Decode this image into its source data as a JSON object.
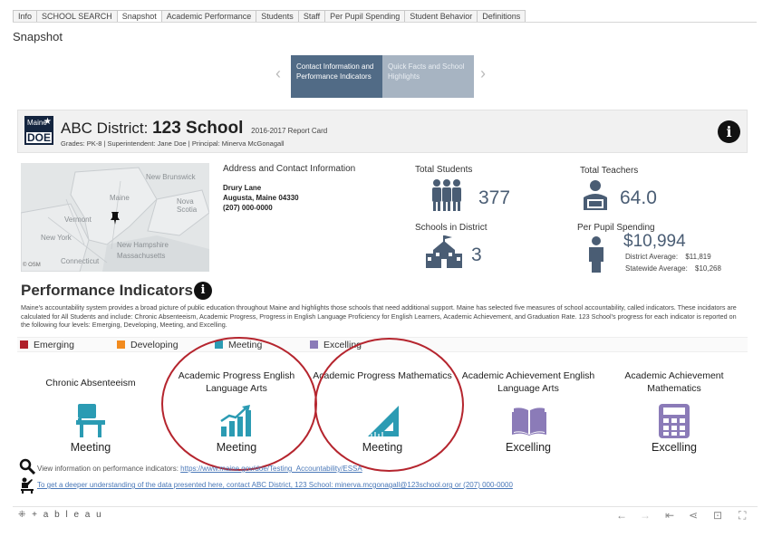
{
  "tabs": [
    {
      "label": "Info",
      "active": false
    },
    {
      "label": "SCHOOL SEARCH",
      "active": false
    },
    {
      "label": "Snapshot",
      "active": true
    },
    {
      "label": "Academic Performance",
      "active": false
    },
    {
      "label": "Students",
      "active": false
    },
    {
      "label": "Staff",
      "active": false
    },
    {
      "label": "Per Pupil Spending",
      "active": false
    },
    {
      "label": "Student Behavior",
      "active": false
    },
    {
      "label": "Definitions",
      "active": false
    }
  ],
  "page_title": "Snapshot",
  "carousel": {
    "active_label": "Contact Information and Performance Indicators",
    "inactive_label": "Quick Facts and School Highlights",
    "prev_icon": "chevron-left-icon",
    "next_icon": "chevron-right-icon"
  },
  "header": {
    "logo_text_top": "Maine",
    "logo_text_bottom": "DOE",
    "district": "ABC District:",
    "school": "123 School",
    "report_card": "2016-2017 Report Card",
    "subheading": "Grades: PK-8 | Superintendent: Jane Doe | Principal: Minerva McGonagall"
  },
  "map": {
    "labels": [
      "New Brunswick",
      "Maine",
      "Nova Scotia",
      "Vermont",
      "New York",
      "New Hampshire",
      "Massachusetts",
      "Connecticut"
    ],
    "attribution": "© OSM"
  },
  "address": {
    "title": "Address and Contact Information",
    "street": "Drury Lane",
    "city": "Augusta, Maine 04330",
    "phone": "(207) 000-0000"
  },
  "stats": {
    "total_students_label": "Total Students",
    "total_students": "377",
    "total_teachers_label": "Total Teachers",
    "total_teachers": "64.0",
    "schools_label": "Schools in District",
    "schools": "3",
    "spending_label": "Per Pupil Spending",
    "spending": "$10,994",
    "district_avg_label": "District Average:",
    "district_avg": "$11,819",
    "statewide_avg_label": "Statewide Average:",
    "statewide_avg": "$10,268"
  },
  "performance": {
    "title": "Performance Indicators",
    "description": "Maine's accountability system provides a broad picture of public education throughout Maine and highlights those schools that need additional support. Maine has selected five measures of school accountability, called indicators. These incidators are calculated for All Students and include: Chronic Absenteeism, Academic Progress, Progress in English Language Proficiency for English Learners, Academic Achievement, and Graduation Rate. 123 School's progress for each indicator is reported on the following four levels: Emerging, Developing, Meeting, and Excelling.",
    "legend": [
      {
        "label": "Emerging",
        "color": "#b0202a"
      },
      {
        "label": "Developing",
        "color": "#f28b1e"
      },
      {
        "label": "Meeting",
        "color": "#2b9bb3"
      },
      {
        "label": "Excelling",
        "color": "#8b7bb8"
      }
    ],
    "indicators": [
      {
        "title": "Chronic Absenteeism",
        "status": "Meeting",
        "icon": "school-desk-icon"
      },
      {
        "title": "Academic Progress English Language Arts",
        "status": "Meeting",
        "icon": "bar-chart-growth-icon"
      },
      {
        "title": "Academic Progress Mathematics",
        "status": "Meeting",
        "icon": "ruler-triangle-icon"
      },
      {
        "title": "Academic Achievement English Language Arts",
        "status": "Excelling",
        "icon": "open-book-icon"
      },
      {
        "title": "Academic Achievement Mathematics",
        "status": "Excelling",
        "icon": "calculator-icon"
      }
    ]
  },
  "footer": {
    "view_info_text": "View information on performance indicators:",
    "view_info_link": "https://www.maine.gov/doe/Testing_Accountability/ESSA",
    "contact_link": "To get a deeper understanding of the data presented here, contact ABC District, 123 School: minerva.mcgonagall@123school.org or (207) 000-0000"
  },
  "toolbar": {
    "brand": "+ a b l e a u"
  },
  "colors": {
    "nav_active": "#516b86",
    "nav_inactive": "#a7b4c2",
    "stat_blue": "#4a5d74",
    "meeting_teal": "#2b9bb3",
    "excelling_purple": "#8b7bb8",
    "annotation_red": "#b5252e"
  }
}
